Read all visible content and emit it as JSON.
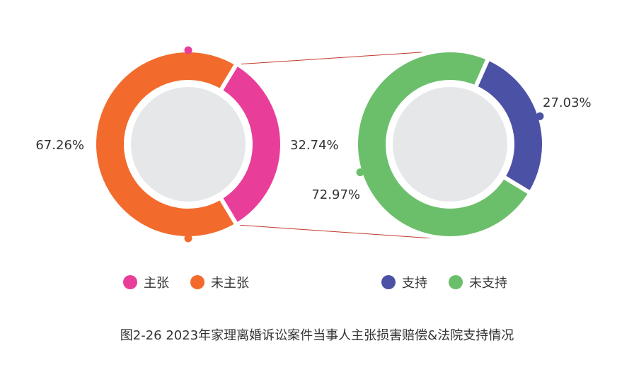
{
  "chart_data": [
    {
      "type": "pie",
      "variant": "donut",
      "categories": [
        "主张",
        "未主张"
      ],
      "values": [
        32.74,
        67.26
      ],
      "labels": [
        "32.74%",
        "67.26%"
      ],
      "colors": [
        "#e83e9a",
        "#f26b2d"
      ]
    },
    {
      "type": "pie",
      "variant": "donut",
      "categories": [
        "支持",
        "未支持"
      ],
      "values": [
        27.03,
        72.97
      ],
      "labels": [
        "27.03%",
        "72.97%"
      ],
      "colors": [
        "#4b52a5",
        "#6bbf6a"
      ]
    }
  ],
  "legend_left": [
    {
      "label": "主张",
      "color": "#e83e9a"
    },
    {
      "label": "未主张",
      "color": "#f26b2d"
    }
  ],
  "legend_right": [
    {
      "label": "支持",
      "color": "#4b52a5"
    },
    {
      "label": "未支持",
      "color": "#6bbf6a"
    }
  ],
  "caption": "图2-26  2023年家理离婚诉讼案件当事人主张损害赔偿&法院支持情况",
  "colors": {
    "inner_disc": "#e6e7e8",
    "connector": "#c0392b"
  }
}
